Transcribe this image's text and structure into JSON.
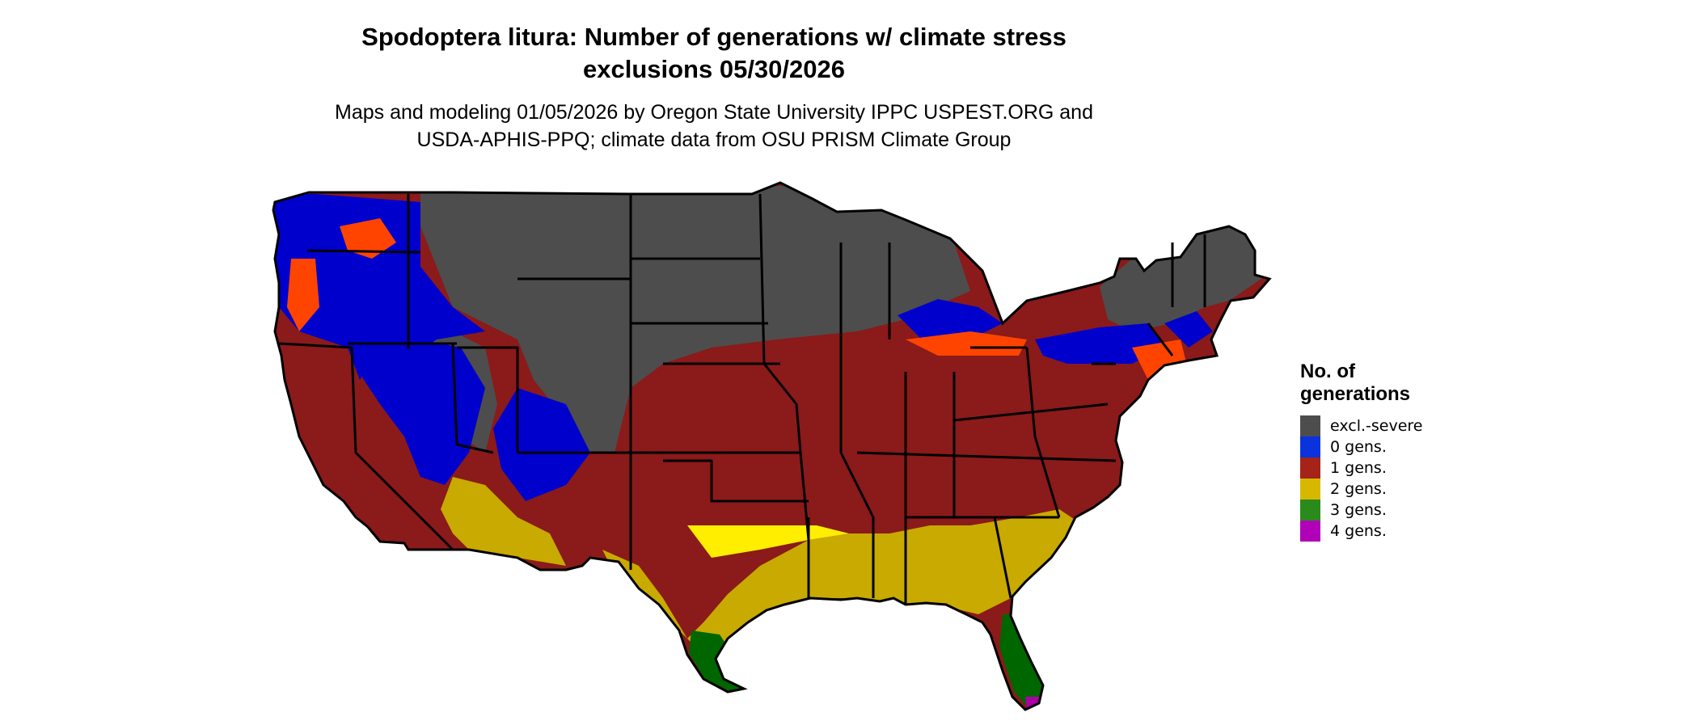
{
  "title": {
    "line1": "Spodoptera litura: Number of generations w/ climate stress",
    "line2": "exclusions 05/30/2026"
  },
  "subtitle": {
    "line1": "Maps and modeling 01/05/2026 by Oregon State University IPPC USPEST.ORG and",
    "line2": "USDA-APHIS-PPQ; climate data from OSU PRISM Climate Group"
  },
  "legend": {
    "title_line1": "No. of",
    "title_line2": "generations",
    "items": [
      {
        "label": "excl.-severe",
        "color": "#4d4d4d"
      },
      {
        "label": "0 gens.",
        "color": "#0a33dd"
      },
      {
        "label": "1 gens.",
        "color": "#a52318"
      },
      {
        "label": "2 gens.",
        "color": "#d6b800"
      },
      {
        "label": "3 gens.",
        "color": "#2a8a1c"
      },
      {
        "label": "4 gens.",
        "color": "#b000b8"
      }
    ]
  },
  "map_colors": {
    "excl_severe": "#4d4d4d",
    "zero_gens": "#0000cc",
    "one_gens": "#8b1a1a",
    "one_gens_light": "#ff4400",
    "two_gens": "#c8aa00",
    "two_gens_light": "#ffee00",
    "three_gens": "#006600",
    "three_gens_light": "#339933",
    "four_gens": "#aa00aa",
    "state_border": "#000000"
  }
}
